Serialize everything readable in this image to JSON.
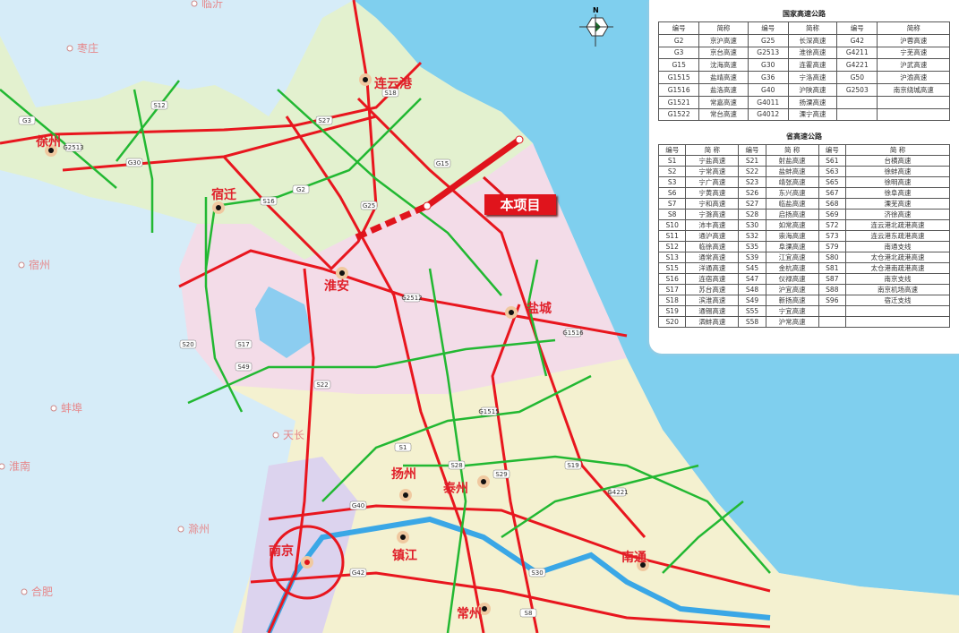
{
  "map": {
    "project_label": "本项目",
    "compass_label": "N",
    "colors": {
      "national_highway": "#e8161e",
      "provincial_highway": "#22b832",
      "sea": "#7fcfee",
      "project": "#e0141c"
    },
    "cities": [
      "徐州",
      "连云港",
      "宿迁",
      "淮安",
      "盐城",
      "扬州",
      "泰州",
      "南京",
      "镇江",
      "南通",
      "常州"
    ],
    "neighbor_cities": [
      "临沂",
      "枣庄",
      "宿州",
      "蚌埠",
      "淮南",
      "滁州",
      "合肥",
      "天长"
    ],
    "road_labels": [
      "G3",
      "G30",
      "G2513",
      "G25",
      "G15",
      "G2",
      "S12",
      "S16",
      "S18",
      "S27",
      "G1516",
      "G2512",
      "S22",
      "S49",
      "S28",
      "G1515",
      "S1",
      "G40",
      "G42",
      "S8",
      "G4221",
      "S19",
      "S29",
      "S30",
      "S17",
      "S20"
    ]
  },
  "national_table": {
    "title": "国家高速公路",
    "headers": [
      "编号",
      "简称",
      "编号",
      "简称",
      "编号",
      "简称"
    ],
    "rows": [
      [
        "G2",
        "京沪高速",
        "G25",
        "长深高速",
        "G42",
        "沪蓉高速"
      ],
      [
        "G3",
        "京台高速",
        "G2513",
        "淮徐高速",
        "G4211",
        "宁芜高速"
      ],
      [
        "G15",
        "沈海高速",
        "G30",
        "连霍高速",
        "G4221",
        "沪武高速"
      ],
      [
        "G1515",
        "盐靖高速",
        "G36",
        "宁洛高速",
        "G50",
        "沪渝高速"
      ],
      [
        "G1516",
        "盐洛高速",
        "G40",
        "沪陕高速",
        "G2503",
        "南京绕城高速"
      ],
      [
        "G1521",
        "常嘉高速",
        "G4011",
        "扬溧高速",
        "",
        ""
      ],
      [
        "G1522",
        "常台高速",
        "G4012",
        "溧宁高速",
        "",
        ""
      ]
    ]
  },
  "provincial_table": {
    "title": "省高速公路",
    "headers": [
      "编号",
      "简 称",
      "编号",
      "简 称",
      "编号",
      "简 称"
    ],
    "rows": [
      [
        "S1",
        "宁盐高速",
        "S21",
        "射盐高速",
        "S61",
        "台横高速"
      ],
      [
        "S2",
        "宁常高速",
        "S22",
        "盐蚌高速",
        "S63",
        "徐蚌高速"
      ],
      [
        "S3",
        "宁广高速",
        "S23",
        "靖张高速",
        "S65",
        "徐明高速"
      ],
      [
        "S6",
        "宁黄高速",
        "S26",
        "东兴高速",
        "S67",
        "徐阜高速"
      ],
      [
        "S7",
        "宁和高速",
        "S27",
        "临盐高速",
        "S68",
        "溧芜高速"
      ],
      [
        "S8",
        "宁滁高速",
        "S28",
        "启扬高速",
        "S69",
        "济徐高速"
      ],
      [
        "S10",
        "沛丰高速",
        "S30",
        "如常高速",
        "S72",
        "连云港北疏港高速"
      ],
      [
        "S11",
        "通沪高速",
        "S32",
        "崇海高速",
        "S73",
        "连云港东疏港高速"
      ],
      [
        "S12",
        "临徐高速",
        "S35",
        "阜溧高速",
        "S79",
        "南通支线"
      ],
      [
        "S13",
        "通常高速",
        "S39",
        "江宜高速",
        "S80",
        "太仓港北疏港高速"
      ],
      [
        "S15",
        "洋通高速",
        "S45",
        "金杭高速",
        "S81",
        "太仓港南疏港高速"
      ],
      [
        "S16",
        "连宿高速",
        "S47",
        "仪禄高速",
        "S87",
        "南京支线"
      ],
      [
        "S17",
        "苏台高速",
        "S48",
        "沪宜高速",
        "S88",
        "南京机场高速"
      ],
      [
        "S18",
        "滨淮高速",
        "S49",
        "新扬高速",
        "S96",
        "宿迁支线"
      ],
      [
        "S19",
        "通锡高速",
        "S55",
        "宁宜高速",
        "",
        ""
      ],
      [
        "S20",
        "泗蚌高速",
        "S58",
        "沪常高速",
        "",
        ""
      ]
    ]
  }
}
